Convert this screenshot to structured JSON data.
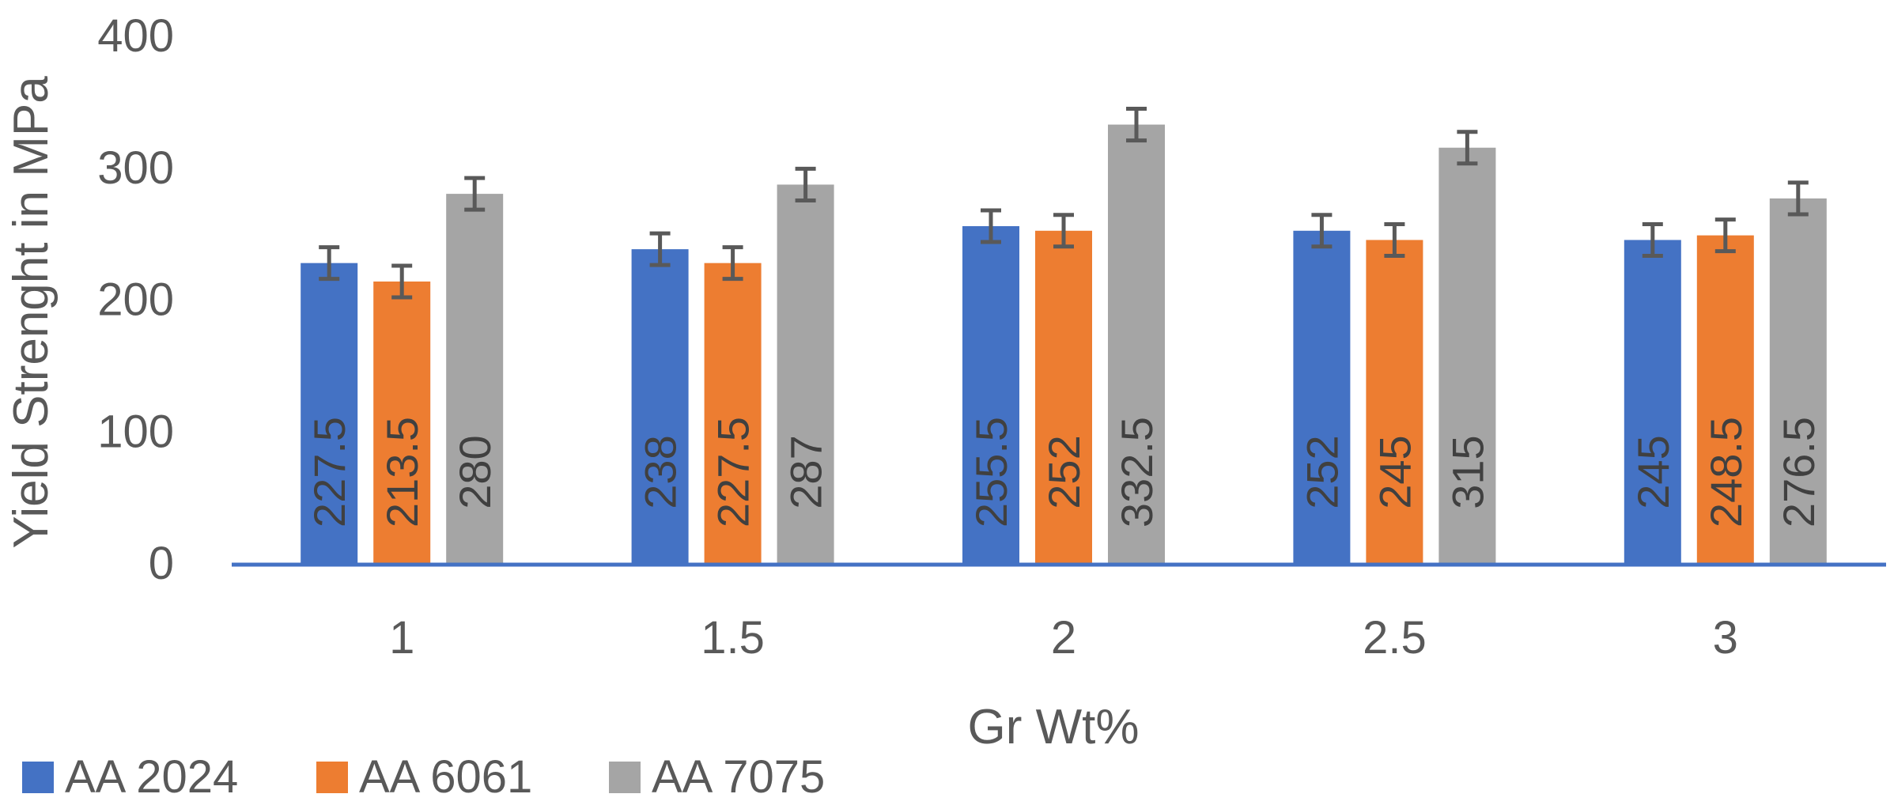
{
  "chart_data": {
    "type": "bar",
    "title": "",
    "xlabel": "Gr Wt%",
    "ylabel": "Yield Strenght  in MPa",
    "categories": [
      "1",
      "1.5",
      "2",
      "2.5",
      "3"
    ],
    "ylim": [
      0,
      400
    ],
    "yticks": [
      "0",
      "100",
      "200",
      "300",
      "400"
    ],
    "grid": false,
    "legend_position": "bottom-left",
    "error_bar": 12,
    "series": [
      {
        "name": "AA 2024",
        "color": "#4472C4",
        "values": [
          227.5,
          238,
          255.5,
          252,
          245
        ],
        "labels": [
          "227.5",
          "238",
          "255.5",
          "252",
          "245"
        ]
      },
      {
        "name": "AA 6061",
        "color": "#ED7D31",
        "values": [
          213.5,
          227.5,
          252,
          245,
          248.5
        ],
        "labels": [
          "213.5",
          "227.5",
          "252",
          "245",
          "248.5"
        ]
      },
      {
        "name": "AA 7075",
        "color": "#A5A5A5",
        "values": [
          280,
          287,
          332.5,
          315,
          276.5
        ],
        "labels": [
          "280",
          "287",
          "332.5",
          "315",
          "276.5"
        ]
      }
    ]
  }
}
